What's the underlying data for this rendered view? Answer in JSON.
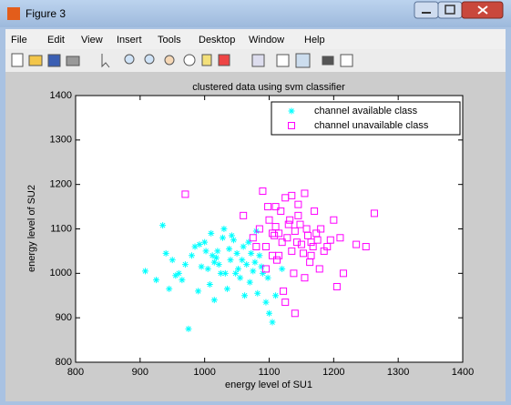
{
  "window": {
    "title": "Figure 3",
    "menu": [
      "File",
      "Edit",
      "View",
      "Insert",
      "Tools",
      "Desktop",
      "Window",
      "Help"
    ]
  },
  "chart_data": {
    "type": "scatter",
    "title": "clustered data using svm classifier",
    "x_label": "energy level of SU1",
    "y_label": "energy level of SU2",
    "xlim": [
      800,
      1400
    ],
    "ylim": [
      800,
      1400
    ],
    "xticks": [
      800,
      900,
      1000,
      1100,
      1200,
      1300,
      1400
    ],
    "yticks": [
      800,
      900,
      1000,
      1100,
      1200,
      1300,
      1400
    ],
    "legend": "upper right",
    "series": [
      {
        "name": "channel available class",
        "color": "#00ffff",
        "marker": "star",
        "x": [
          935,
          908,
          950,
          965,
          980,
          990,
          1000,
          1005,
          1010,
          1015,
          1020,
          1025,
          1030,
          1035,
          1040,
          1045,
          1050,
          1055,
          1060,
          1065,
          1070,
          1075,
          1080,
          1085,
          1090,
          1095,
          1100,
          1105,
          1110,
          1120,
          925,
          940,
          955,
          970,
          985,
          995,
          1008,
          1018,
          1028,
          1038,
          1048,
          1058,
          1068,
          1078,
          1088,
          1098,
          975,
          1002,
          1022,
          1042,
          1062,
          1032,
          1012,
          992,
          1052,
          1072,
          960,
          945,
          1082,
          1015
        ],
        "values": [
          1108,
          1005,
          1030,
          985,
          1040,
          960,
          1070,
          1010,
          1090,
          940,
          1050,
          1000,
          1100,
          965,
          1030,
          1075,
          1045,
          990,
          1060,
          1020,
          980,
          1005,
          1095,
          1040,
          1000,
          935,
          910,
          890,
          950,
          1010,
          985,
          1045,
          995,
          1020,
          1060,
          1015,
          975,
          1035,
          1080,
          1055,
          1000,
          1030,
          1070,
          1025,
          1015,
          990,
          875,
          1050,
          1020,
          1085,
          950,
          1000,
          1040,
          1065,
          1010,
          1045,
          1000,
          965,
          955,
          1025
        ]
      },
      {
        "name": "channel unavailable class",
        "color": "#ff00ff",
        "marker": "square",
        "x": [
          970,
          1060,
          1075,
          1085,
          1090,
          1095,
          1100,
          1105,
          1110,
          1115,
          1120,
          1125,
          1130,
          1135,
          1140,
          1145,
          1150,
          1155,
          1160,
          1165,
          1170,
          1175,
          1180,
          1190,
          1200,
          1210,
          1235,
          1250,
          1263,
          1140,
          1080,
          1095,
          1105,
          1112,
          1118,
          1122,
          1128,
          1132,
          1138,
          1143,
          1148,
          1153,
          1158,
          1163,
          1168,
          1173,
          1178,
          1185,
          1195,
          1205,
          1098,
          1108,
          1125,
          1145,
          1165,
          1155,
          1115,
          1135,
          1215,
          1110
        ],
        "values": [
          1178,
          1130,
          1080,
          1100,
          1185,
          1060,
          1120,
          1040,
          1150,
          1090,
          1070,
          1170,
          1110,
          1050,
          1095,
          1130,
          1065,
          1180,
          1085,
          1040,
          1140,
          1075,
          1100,
          1060,
          1120,
          1080,
          1065,
          1060,
          1135,
          910,
          1060,
          1010,
          1090,
          1030,
          1140,
          960,
          1080,
          1120,
          1000,
          1070,
          1110,
          1045,
          1100,
          1025,
          1060,
          1090,
          1010,
          1050,
          1075,
          970,
          1150,
          1085,
          935,
          1155,
          1070,
          990,
          1040,
          1175,
          1000,
          1105
        ]
      }
    ]
  }
}
